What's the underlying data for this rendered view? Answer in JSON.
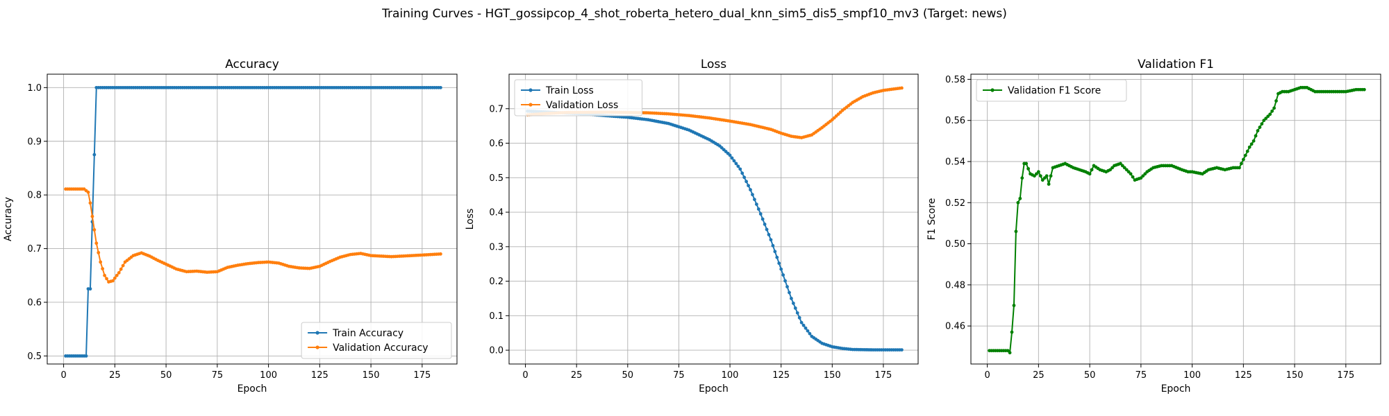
{
  "figure_title": "Training Curves - HGT_gossipcop_4_shot_roberta_hetero_dual_knn_sim5_dis5_smpf10_mv3 (Target: news)",
  "chart_data": [
    {
      "type": "line",
      "id": "accuracy",
      "title": "Accuracy",
      "xlabel": "Epoch",
      "ylabel": "Accuracy",
      "xlim": [
        -8,
        192
      ],
      "ylim": [
        0.485,
        1.025
      ],
      "xticks": [
        0,
        25,
        50,
        75,
        100,
        125,
        150,
        175
      ],
      "yticks": [
        0.5,
        0.6,
        0.7,
        0.8,
        0.9,
        1.0
      ],
      "ytick_format": 1,
      "grid": true,
      "legend": "lower-right",
      "series": [
        {
          "name": "Train Accuracy",
          "color": "#1f77b4",
          "x_start": 1,
          "x_end": 184,
          "points": [
            [
              1,
              0.5
            ],
            [
              11,
              0.5
            ],
            [
              12,
              0.625
            ],
            [
              13,
              0.625
            ],
            [
              14,
              0.75
            ],
            [
              15,
              0.875
            ],
            [
              16,
              1.0
            ],
            [
              184,
              1.0
            ]
          ]
        },
        {
          "name": "Validation Accuracy",
          "color": "#ff7f0e",
          "x_start": 1,
          "x_end": 184,
          "points": [
            [
              1,
              0.811
            ],
            [
              10,
              0.811
            ],
            [
              12,
              0.805
            ],
            [
              13,
              0.785
            ],
            [
              14,
              0.76
            ],
            [
              15,
              0.735
            ],
            [
              16,
              0.71
            ],
            [
              18,
              0.675
            ],
            [
              20,
              0.65
            ],
            [
              22,
              0.638
            ],
            [
              24,
              0.64
            ],
            [
              27,
              0.655
            ],
            [
              30,
              0.675
            ],
            [
              34,
              0.687
            ],
            [
              38,
              0.692
            ],
            [
              42,
              0.686
            ],
            [
              46,
              0.678
            ],
            [
              50,
              0.671
            ],
            [
              55,
              0.662
            ],
            [
              60,
              0.657
            ],
            [
              65,
              0.658
            ],
            [
              70,
              0.656
            ],
            [
              75,
              0.657
            ],
            [
              80,
              0.665
            ],
            [
              85,
              0.669
            ],
            [
              90,
              0.672
            ],
            [
              95,
              0.674
            ],
            [
              100,
              0.675
            ],
            [
              105,
              0.673
            ],
            [
              110,
              0.667
            ],
            [
              115,
              0.664
            ],
            [
              120,
              0.663
            ],
            [
              125,
              0.667
            ],
            [
              130,
              0.676
            ],
            [
              135,
              0.684
            ],
            [
              140,
              0.689
            ],
            [
              145,
              0.691
            ],
            [
              150,
              0.687
            ],
            [
              160,
              0.685
            ],
            [
              170,
              0.687
            ],
            [
              175,
              0.688
            ],
            [
              184,
              0.69
            ]
          ]
        }
      ]
    },
    {
      "type": "line",
      "id": "loss",
      "title": "Loss",
      "xlabel": "Epoch",
      "ylabel": "Loss",
      "xlim": [
        -8,
        192
      ],
      "ylim": [
        -0.04,
        0.8
      ],
      "xticks": [
        0,
        25,
        50,
        75,
        100,
        125,
        150,
        175
      ],
      "yticks": [
        0.0,
        0.1,
        0.2,
        0.3,
        0.4,
        0.5,
        0.6,
        0.7
      ],
      "ytick_format": 1,
      "grid": true,
      "legend": "upper-left",
      "series": [
        {
          "name": "Train Loss",
          "color": "#1f77b4",
          "x_start": 1,
          "x_end": 184,
          "points": [
            [
              1,
              0.693
            ],
            [
              25,
              0.686
            ],
            [
              50,
              0.675
            ],
            [
              60,
              0.668
            ],
            [
              70,
              0.657
            ],
            [
              80,
              0.638
            ],
            [
              90,
              0.61
            ],
            [
              95,
              0.592
            ],
            [
              100,
              0.565
            ],
            [
              105,
              0.525
            ],
            [
              110,
              0.465
            ],
            [
              115,
              0.395
            ],
            [
              120,
              0.32
            ],
            [
              125,
              0.235
            ],
            [
              130,
              0.15
            ],
            [
              135,
              0.08
            ],
            [
              140,
              0.04
            ],
            [
              145,
              0.02
            ],
            [
              150,
              0.01
            ],
            [
              155,
              0.005
            ],
            [
              160,
              0.002
            ],
            [
              170,
              0.001
            ],
            [
              184,
              0.001
            ]
          ]
        },
        {
          "name": "Validation Loss",
          "color": "#ff7f0e",
          "x_start": 1,
          "x_end": 184,
          "points": [
            [
              1,
              0.682
            ],
            [
              10,
              0.686
            ],
            [
              20,
              0.689
            ],
            [
              40,
              0.69
            ],
            [
              60,
              0.688
            ],
            [
              70,
              0.685
            ],
            [
              80,
              0.68
            ],
            [
              90,
              0.673
            ],
            [
              100,
              0.664
            ],
            [
              110,
              0.654
            ],
            [
              120,
              0.64
            ],
            [
              125,
              0.629
            ],
            [
              130,
              0.62
            ],
            [
              135,
              0.616
            ],
            [
              140,
              0.624
            ],
            [
              145,
              0.645
            ],
            [
              150,
              0.668
            ],
            [
              155,
              0.695
            ],
            [
              160,
              0.718
            ],
            [
              165,
              0.735
            ],
            [
              170,
              0.746
            ],
            [
              175,
              0.753
            ],
            [
              180,
              0.757
            ],
            [
              184,
              0.76
            ]
          ]
        }
      ]
    },
    {
      "type": "line",
      "id": "validation-f1",
      "title": "Validation F1",
      "xlabel": "Epoch",
      "ylabel": "F1 Score",
      "xlim": [
        -8,
        192
      ],
      "ylim": [
        0.4415,
        0.5825
      ],
      "xticks": [
        0,
        25,
        50,
        75,
        100,
        125,
        150,
        175
      ],
      "yticks": [
        0.46,
        0.48,
        0.5,
        0.52,
        0.54,
        0.56,
        0.58
      ],
      "ytick_format": 2,
      "grid": true,
      "legend": "upper-left",
      "series": [
        {
          "name": "Validation F1 Score",
          "color": "#008000",
          "x_start": 1,
          "x_end": 184,
          "points": [
            [
              1,
              0.448
            ],
            [
              10,
              0.448
            ],
            [
              11,
              0.447
            ],
            [
              12,
              0.457
            ],
            [
              13,
              0.47
            ],
            [
              14,
              0.506
            ],
            [
              15,
              0.52
            ],
            [
              16,
              0.522
            ],
            [
              17,
              0.532
            ],
            [
              18,
              0.539
            ],
            [
              19,
              0.539
            ],
            [
              21,
              0.534
            ],
            [
              23,
              0.533
            ],
            [
              25,
              0.535
            ],
            [
              27,
              0.531
            ],
            [
              29,
              0.533
            ],
            [
              30,
              0.529
            ],
            [
              32,
              0.537
            ],
            [
              35,
              0.538
            ],
            [
              38,
              0.539
            ],
            [
              42,
              0.537
            ],
            [
              45,
              0.536
            ],
            [
              48,
              0.535
            ],
            [
              50,
              0.534
            ],
            [
              52,
              0.538
            ],
            [
              55,
              0.536
            ],
            [
              58,
              0.535
            ],
            [
              60,
              0.536
            ],
            [
              62,
              0.538
            ],
            [
              65,
              0.539
            ],
            [
              68,
              0.536
            ],
            [
              70,
              0.534
            ],
            [
              72,
              0.531
            ],
            [
              75,
              0.532
            ],
            [
              78,
              0.535
            ],
            [
              81,
              0.537
            ],
            [
              85,
              0.538
            ],
            [
              90,
              0.538
            ],
            [
              95,
              0.536
            ],
            [
              98,
              0.535
            ],
            [
              100,
              0.535
            ],
            [
              105,
              0.534
            ],
            [
              108,
              0.536
            ],
            [
              112,
              0.537
            ],
            [
              116,
              0.536
            ],
            [
              120,
              0.537
            ],
            [
              123,
              0.537
            ],
            [
              125,
              0.541
            ],
            [
              128,
              0.547
            ],
            [
              130,
              0.55
            ],
            [
              132,
              0.555
            ],
            [
              135,
              0.56
            ],
            [
              138,
              0.563
            ],
            [
              140,
              0.566
            ],
            [
              142,
              0.573
            ],
            [
              144,
              0.574
            ],
            [
              147,
              0.574
            ],
            [
              150,
              0.575
            ],
            [
              153,
              0.576
            ],
            [
              156,
              0.576
            ],
            [
              158,
              0.575
            ],
            [
              160,
              0.574
            ],
            [
              165,
              0.574
            ],
            [
              170,
              0.574
            ],
            [
              175,
              0.574
            ],
            [
              180,
              0.575
            ],
            [
              184,
              0.575
            ]
          ]
        }
      ]
    }
  ]
}
